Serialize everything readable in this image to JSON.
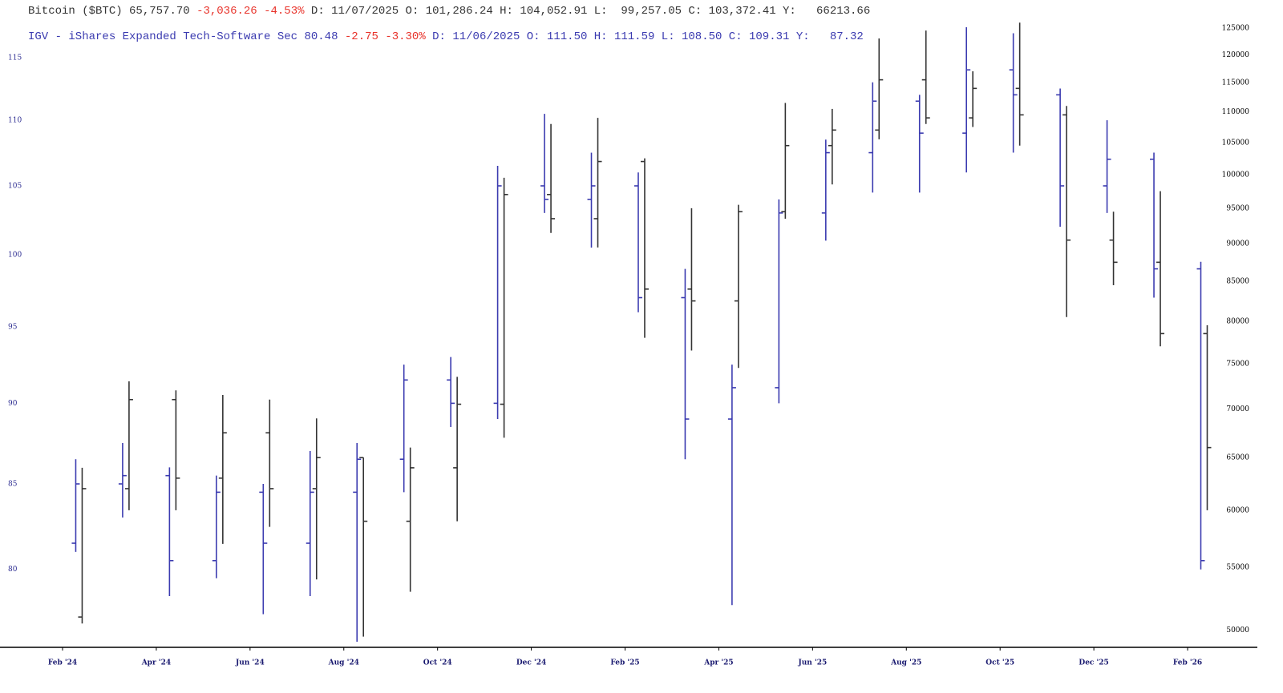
{
  "chart_data": {
    "type": "ohlc",
    "log_scale": true,
    "x": [
      "2024-02",
      "2024-03",
      "2024-04",
      "2024-05",
      "2024-06",
      "2024-07",
      "2024-08",
      "2024-09",
      "2024-10",
      "2024-11",
      "2024-12",
      "2025-01",
      "2025-02",
      "2025-03",
      "2025-04",
      "2025-05",
      "2025-06",
      "2025-07",
      "2025-08",
      "2025-09",
      "2025-10",
      "2025-11",
      "2025-12",
      "2026-01",
      "2026-02"
    ],
    "xticks": [
      {
        "value": "2024-02",
        "label": "Feb '24"
      },
      {
        "value": "2024-04",
        "label": "Apr '24"
      },
      {
        "value": "2024-06",
        "label": "Jun '24"
      },
      {
        "value": "2024-08",
        "label": "Aug '24"
      },
      {
        "value": "2024-10",
        "label": "Oct '24"
      },
      {
        "value": "2024-12",
        "label": "Dec '24"
      },
      {
        "value": "2025-02",
        "label": "Feb '25"
      },
      {
        "value": "2025-04",
        "label": "Apr '25"
      },
      {
        "value": "2025-06",
        "label": "Jun '25"
      },
      {
        "value": "2025-08",
        "label": "Aug '25"
      },
      {
        "value": "2025-10",
        "label": "Oct '25"
      },
      {
        "value": "2025-12",
        "label": "Dec '25"
      },
      {
        "value": "2026-02",
        "label": "Feb '26"
      }
    ],
    "ylim": [
      75.7,
      118.1
    ],
    "yticks": [
      80,
      85,
      90,
      95,
      100,
      105,
      110,
      115
    ],
    "y2lim": [
      48700,
      126500
    ],
    "y2ticks": [
      50000,
      55000,
      60000,
      65000,
      70000,
      75000,
      80000,
      85000,
      90000,
      95000,
      100000,
      105000,
      110000,
      115000,
      120000,
      125000
    ],
    "series": [
      {
        "name": "IGV - iShares Expanded Tech-Software Sec",
        "color": "#3b3bb0",
        "axis": "y",
        "last": "80.48",
        "change": "-2.75",
        "change_pct": "-3.30%",
        "details": "D: 11/06/2025 O: 111.50 H: 111.59 L: 108.50 C: 109.31 Y:   87.32",
        "open": [
          81.5,
          85,
          85.5,
          80.5,
          84.5,
          81.5,
          84.5,
          86.5,
          91.5,
          90,
          105,
          104,
          105,
          97,
          89,
          91,
          103,
          107.5,
          111.5,
          109,
          114,
          112,
          105,
          107,
          99
        ],
        "high": [
          86.5,
          87.5,
          86,
          85.5,
          85,
          87,
          87.5,
          92.5,
          93,
          106.5,
          110.5,
          107.5,
          106,
          99,
          92.5,
          104,
          108.5,
          113,
          112,
          117.5,
          117,
          112.5,
          110,
          107.5,
          99.5
        ],
        "low": [
          81,
          83,
          78.5,
          79.5,
          77.5,
          78.5,
          76,
          84.5,
          88.5,
          89,
          103,
          100.5,
          96,
          86.5,
          78,
          90,
          101,
          104.5,
          104.5,
          106,
          107.5,
          102,
          103,
          97,
          80
        ],
        "close": [
          85,
          85.5,
          80.5,
          84.5,
          81.5,
          84.5,
          86.5,
          91.5,
          90,
          105,
          104,
          105,
          97,
          89,
          91,
          103,
          107.5,
          111.5,
          109,
          114,
          112,
          105,
          107,
          99,
          80.5
        ]
      },
      {
        "name": "Bitcoin ($BTC)",
        "color": "#333333",
        "axis": "y2",
        "last": "65,757.70",
        "change": "-3,036.26",
        "change_pct": "-4.53%",
        "details": "D: 11/07/2025 O: 101,286.24 H: 104,052.91 L:  99,257.05 C: 103,372.41 Y:   66213.66",
        "open": [
          51000,
          62000,
          71000,
          63000,
          67500,
          62000,
          65000,
          59000,
          64000,
          70500,
          97000,
          93500,
          102000,
          84000,
          82500,
          94500,
          104500,
          107000,
          115500,
          109000,
          114000,
          109500,
          90500,
          87500,
          78500
        ],
        "high": [
          64000,
          73000,
          72000,
          71500,
          71000,
          69000,
          65000,
          66000,
          73500,
          99500,
          108000,
          109000,
          102500,
          95000,
          95500,
          111500,
          110500,
          123000,
          124500,
          117000,
          126000,
          111000,
          94500,
          97500,
          79500
        ],
        "low": [
          50500,
          60000,
          60000,
          57000,
          58500,
          54000,
          49500,
          53000,
          59000,
          67000,
          91500,
          89500,
          78000,
          76500,
          74500,
          93500,
          98500,
          105500,
          108000,
          107500,
          104500,
          80500,
          84500,
          77000,
          60000
        ],
        "close": [
          62000,
          71000,
          63000,
          67500,
          62000,
          65000,
          59000,
          64000,
          70500,
          97000,
          93500,
          102000,
          84000,
          82500,
          94500,
          104500,
          107000,
          115500,
          109000,
          114000,
          109500,
          90500,
          87500,
          78500,
          66000
        ]
      }
    ]
  }
}
